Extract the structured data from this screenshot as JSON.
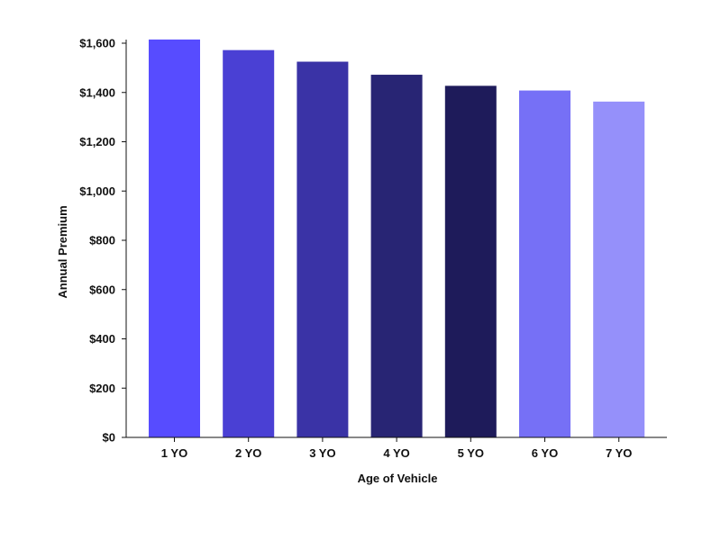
{
  "chart_data": {
    "type": "bar",
    "title": "",
    "xlabel": "Age of Vehicle",
    "ylabel": "Annual Premium",
    "categories": [
      "1 YO",
      "2 YO",
      "3 YO",
      "4 YO",
      "5 YO",
      "6 YO",
      "7 YO"
    ],
    "values": [
      1615,
      1572,
      1525,
      1472,
      1427,
      1408,
      1363
    ],
    "colors": [
      "#574cff",
      "#4a40d4",
      "#3a33a6",
      "#282574",
      "#1e1b5a",
      "#7670f6",
      "#9590fa"
    ],
    "ylim": [
      0,
      1600
    ],
    "yticks": [
      0,
      200,
      400,
      600,
      800,
      1000,
      1200,
      1400,
      1600
    ],
    "ytick_labels": [
      "$0",
      "$200",
      "$400",
      "$600",
      "$800",
      "$1,000",
      "$1,200",
      "$1,400",
      "$1,600"
    ],
    "grid": false,
    "legend": "none"
  }
}
